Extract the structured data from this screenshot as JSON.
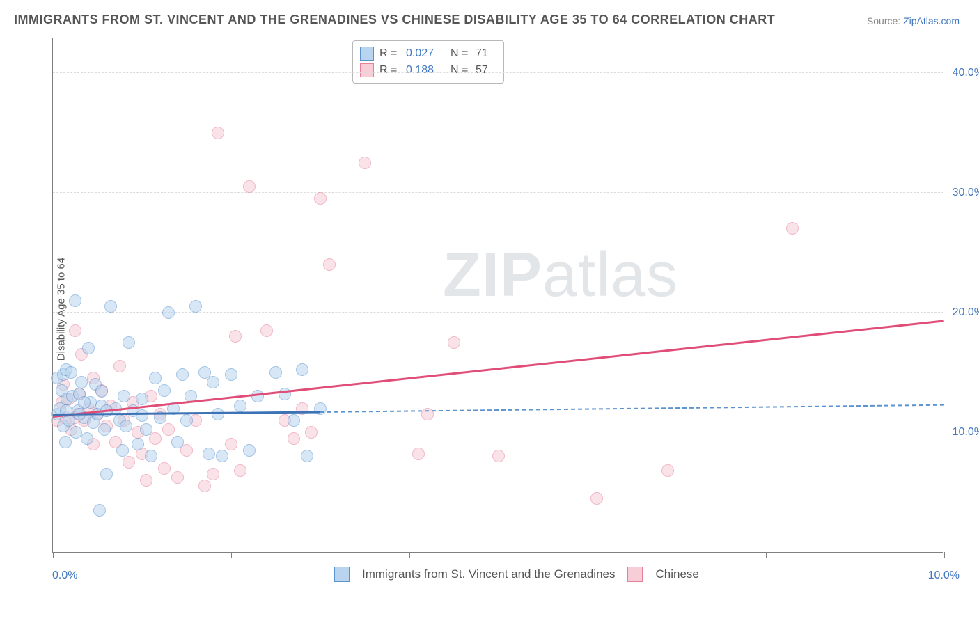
{
  "title": "IMMIGRANTS FROM ST. VINCENT AND THE GRENADINES VS CHINESE DISABILITY AGE 35 TO 64 CORRELATION CHART",
  "source_prefix": "Source: ",
  "source_name": "ZipAtlas.com",
  "y_axis_label": "Disability Age 35 to 64",
  "watermark_zip": "ZIP",
  "watermark_atlas": "atlas",
  "chart": {
    "type": "scatter",
    "background_color": "#ffffff",
    "grid_color": "#dcdcdc",
    "axis_color": "#808080",
    "text_color": "#555555",
    "tick_label_color": "#4178c0",
    "title_fontsize": 18,
    "label_fontsize": 15,
    "tick_fontsize": 16,
    "xlim": [
      0,
      10
    ],
    "ylim": [
      0,
      43
    ],
    "x_ticks": [
      0,
      2,
      4,
      6,
      8,
      10
    ],
    "y_grid": [
      10,
      20,
      30,
      40
    ],
    "y_tick_labels": [
      "10.0%",
      "20.0%",
      "30.0%",
      "40.0%"
    ],
    "x_left_label": "0.0%",
    "x_right_label": "10.0%",
    "marker_radius": 9,
    "marker_opacity": 0.55,
    "series": [
      {
        "name": "Immigrants from St. Vincent and the Grenadines",
        "fill": "#b8d4ee",
        "stroke": "#5b93cf",
        "r_value": "0.027",
        "n_value": "71",
        "trend_solid": {
          "x1": 0.0,
          "y1": 11.4,
          "x2": 3.0,
          "y2": 11.6,
          "color": "#3c72b6",
          "width": 3
        },
        "trend_dashed": {
          "x1": 3.0,
          "y1": 11.6,
          "x2": 10.0,
          "y2": 12.2,
          "color": "#5b93cf",
          "width": 2
        },
        "points": [
          [
            0.05,
            14.5
          ],
          [
            0.05,
            11.5
          ],
          [
            0.08,
            12
          ],
          [
            0.1,
            13.5
          ],
          [
            0.12,
            14.8
          ],
          [
            0.12,
            10.5
          ],
          [
            0.14,
            9.2
          ],
          [
            0.15,
            15.2
          ],
          [
            0.16,
            12.8
          ],
          [
            0.18,
            11
          ],
          [
            0.2,
            15
          ],
          [
            0.22,
            13
          ],
          [
            0.25,
            21
          ],
          [
            0.26,
            10
          ],
          [
            0.28,
            11.8
          ],
          [
            0.3,
            13.2
          ],
          [
            0.32,
            14.2
          ],
          [
            0.35,
            11.2
          ],
          [
            0.38,
            9.5
          ],
          [
            0.4,
            17
          ],
          [
            0.42,
            12.5
          ],
          [
            0.45,
            10.8
          ],
          [
            0.48,
            14
          ],
          [
            0.5,
            11.5
          ],
          [
            0.52,
            3.5
          ],
          [
            0.55,
            12.2
          ],
          [
            0.58,
            10.2
          ],
          [
            0.6,
            6.5
          ],
          [
            0.65,
            20.5
          ],
          [
            0.7,
            12
          ],
          [
            0.75,
            11
          ],
          [
            0.78,
            8.5
          ],
          [
            0.8,
            13
          ],
          [
            0.82,
            10.5
          ],
          [
            0.85,
            17.5
          ],
          [
            0.9,
            11.8
          ],
          [
            0.95,
            9
          ],
          [
            1.0,
            12.8
          ],
          [
            1.05,
            10.2
          ],
          [
            1.1,
            8
          ],
          [
            1.15,
            14.5
          ],
          [
            1.2,
            11.2
          ],
          [
            1.25,
            13.5
          ],
          [
            1.3,
            20
          ],
          [
            1.35,
            12
          ],
          [
            1.4,
            9.2
          ],
          [
            1.45,
            14.8
          ],
          [
            1.5,
            11
          ],
          [
            1.55,
            13
          ],
          [
            1.6,
            20.5
          ],
          [
            1.7,
            15
          ],
          [
            1.75,
            8.2
          ],
          [
            1.8,
            14.2
          ],
          [
            1.85,
            11.5
          ],
          [
            1.9,
            8
          ],
          [
            2.0,
            14.8
          ],
          [
            2.1,
            12.2
          ],
          [
            2.2,
            8.5
          ],
          [
            2.3,
            13
          ],
          [
            2.5,
            15
          ],
          [
            2.6,
            13.2
          ],
          [
            2.7,
            11
          ],
          [
            2.8,
            15.2
          ],
          [
            2.85,
            8
          ],
          [
            3.0,
            12
          ],
          [
            0.15,
            11.8
          ],
          [
            0.35,
            12.5
          ],
          [
            0.55,
            13.4
          ],
          [
            0.3,
            11.5
          ],
          [
            0.6,
            11.8
          ],
          [
            1.0,
            11.4
          ]
        ]
      },
      {
        "name": "Chinese",
        "fill": "#f7cdd7",
        "stroke": "#e57f9a",
        "r_value": "0.188",
        "n_value": "57",
        "trend_solid": {
          "x1": 0.0,
          "y1": 11.2,
          "x2": 10.0,
          "y2": 19.2,
          "color": "#e04e78",
          "width": 3
        },
        "points": [
          [
            0.05,
            11
          ],
          [
            0.1,
            12.5
          ],
          [
            0.12,
            14
          ],
          [
            0.15,
            11.2
          ],
          [
            0.18,
            12.8
          ],
          [
            0.2,
            10.2
          ],
          [
            0.25,
            18.5
          ],
          [
            0.28,
            11.5
          ],
          [
            0.3,
            13.2
          ],
          [
            0.32,
            16.5
          ],
          [
            0.35,
            11
          ],
          [
            0.4,
            12
          ],
          [
            0.45,
            9
          ],
          [
            0.5,
            11.5
          ],
          [
            0.55,
            13.5
          ],
          [
            0.6,
            10.5
          ],
          [
            0.65,
            12.2
          ],
          [
            0.7,
            9.2
          ],
          [
            0.75,
            15.5
          ],
          [
            0.8,
            11
          ],
          [
            0.85,
            7.5
          ],
          [
            0.9,
            12.5
          ],
          [
            0.95,
            10
          ],
          [
            1.0,
            8.2
          ],
          [
            1.05,
            6
          ],
          [
            1.1,
            13
          ],
          [
            1.15,
            9.5
          ],
          [
            1.2,
            11.5
          ],
          [
            1.25,
            7
          ],
          [
            1.3,
            10.2
          ],
          [
            1.4,
            6.2
          ],
          [
            1.5,
            8.5
          ],
          [
            1.6,
            11
          ],
          [
            1.7,
            5.5
          ],
          [
            1.8,
            6.5
          ],
          [
            1.85,
            35
          ],
          [
            2.0,
            9
          ],
          [
            2.05,
            18
          ],
          [
            2.1,
            6.8
          ],
          [
            2.2,
            30.5
          ],
          [
            2.4,
            18.5
          ],
          [
            2.6,
            11
          ],
          [
            2.7,
            9.5
          ],
          [
            2.8,
            12
          ],
          [
            2.9,
            10
          ],
          [
            3.0,
            29.5
          ],
          [
            3.1,
            24
          ],
          [
            3.5,
            32.5
          ],
          [
            4.1,
            8.2
          ],
          [
            4.2,
            11.5
          ],
          [
            4.5,
            17.5
          ],
          [
            5.0,
            8
          ],
          [
            6.1,
            4.5
          ],
          [
            6.9,
            6.8
          ],
          [
            8.3,
            27
          ],
          [
            0.25,
            11.2
          ],
          [
            0.45,
            14.5
          ]
        ]
      }
    ]
  },
  "legend_bottom": {
    "series1_label": "Immigrants from St. Vincent and the Grenadines",
    "series2_label": "Chinese"
  }
}
